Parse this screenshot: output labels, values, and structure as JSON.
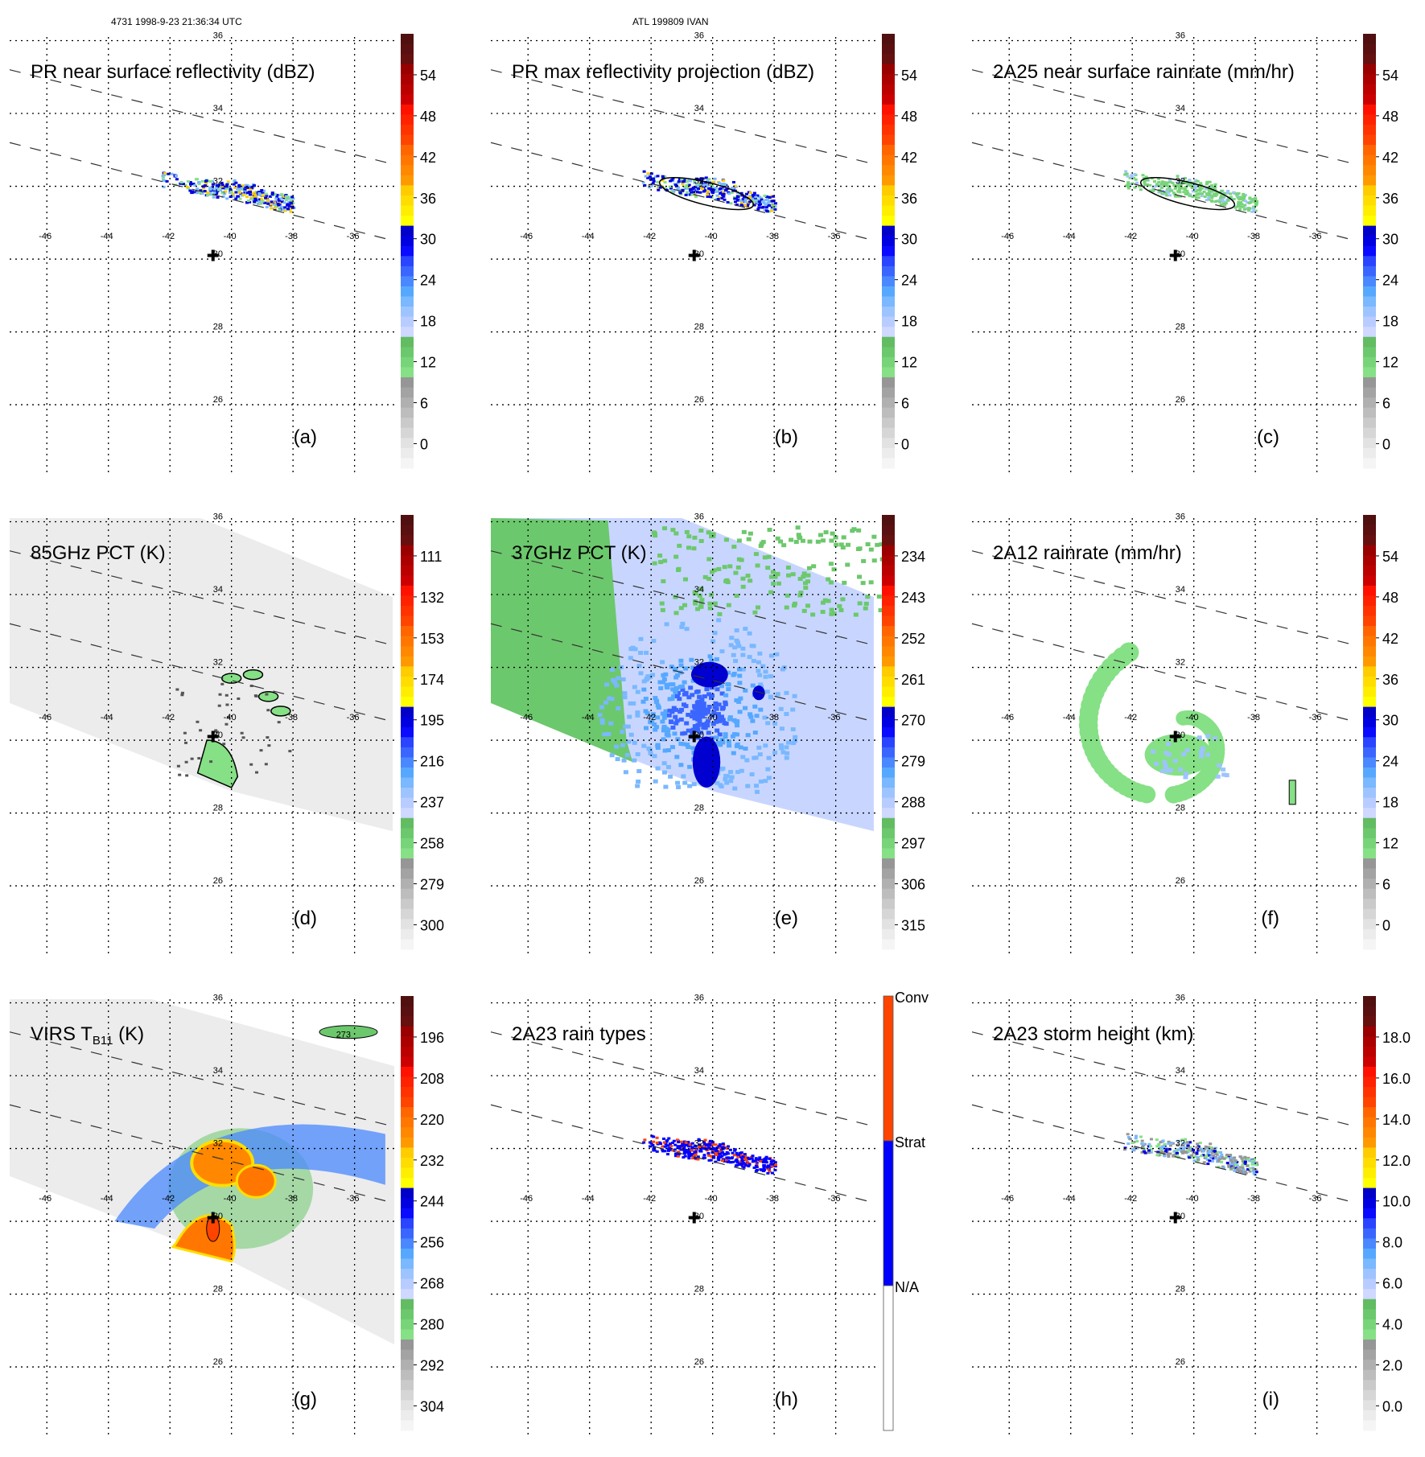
{
  "header": {
    "left": "4731 1998-9-23 21:36:34 UTC",
    "center": "ATL 199809 IVAN"
  },
  "chart_data": [
    {
      "id": "a",
      "type": "heatmap",
      "title": "PR near surface reflectivity (dBZ)",
      "letter": "(a)",
      "xticks": [
        "-46",
        "-44",
        "-42",
        "-40",
        "-38",
        "-36"
      ],
      "yticks": [
        "36",
        "34",
        "32",
        "30",
        "28",
        "26"
      ],
      "xlim": [
        -47,
        -34.5
      ],
      "ylim": [
        24.3,
        36
      ],
      "swath": "PR",
      "colorbar": {
        "ticks": [
          "54",
          "48",
          "42",
          "36",
          "30",
          "24",
          "18",
          "12",
          "6",
          "0"
        ],
        "range": [
          0,
          60
        ]
      },
      "storm_center": [
        -40.6,
        30.1
      ],
      "features": "narrow band of reflectivity 20-40 dBZ near 32N, -42 to -38W"
    },
    {
      "id": "b",
      "type": "heatmap",
      "title": "PR max reflectivity projection (dBZ)",
      "letter": "(b)",
      "xticks": [
        "-46",
        "-44",
        "-42",
        "-40",
        "-38",
        "-36"
      ],
      "yticks": [
        "36",
        "34",
        "32",
        "30",
        "28",
        "26"
      ],
      "xlim": [
        -47,
        -34.5
      ],
      "ylim": [
        24.3,
        36
      ],
      "swath": "PR",
      "colorbar": {
        "ticks": [
          "54",
          "48",
          "42",
          "36",
          "30",
          "24",
          "18",
          "12",
          "6",
          "0"
        ],
        "range": [
          0,
          60
        ]
      },
      "storm_center": [
        -40.6,
        30.1
      ],
      "features": "max reflectivity 20-40 dBZ along 32N band with 18 dBZ contour"
    },
    {
      "id": "c",
      "type": "heatmap",
      "title": "2A25 near surface rainrate (mm/hr)",
      "letter": "(c)",
      "xticks": [
        "-46",
        "-44",
        "-42",
        "-40",
        "-38",
        "-36"
      ],
      "yticks": [
        "36",
        "34",
        "32",
        "30",
        "28",
        "26"
      ],
      "xlim": [
        -47,
        -34.5
      ],
      "ylim": [
        24.3,
        36
      ],
      "swath": "PR",
      "colorbar": {
        "ticks": [
          "54",
          "48",
          "42",
          "36",
          "30",
          "24",
          "18",
          "12",
          "6",
          "0"
        ],
        "range": [
          0,
          60
        ]
      },
      "storm_center": [
        -40.6,
        30.1
      ],
      "features": "light rain 0-8 mm/hr along 32N band"
    },
    {
      "id": "d",
      "type": "heatmap",
      "title": "85GHz PCT (K)",
      "letter": "(d)",
      "xticks": [
        "-46",
        "-44",
        "-42",
        "-40",
        "-38",
        "-36"
      ],
      "yticks": [
        "36",
        "34",
        "32",
        "30",
        "28",
        "26"
      ],
      "xlim": [
        -47,
        -34.5
      ],
      "ylim": [
        24.3,
        36
      ],
      "swath": "TMI",
      "colorbar": {
        "ticks": [
          "111",
          "132",
          "153",
          "174",
          "195",
          "216",
          "237",
          "258",
          "279",
          "300"
        ],
        "range": [
          300,
          90
        ]
      },
      "storm_center": [
        -40.6,
        30.1
      ],
      "features": "mostly 270-300 K; depressed 220-250 K cells near 32N and south of center"
    },
    {
      "id": "e",
      "type": "heatmap",
      "title": "37GHz PCT (K)",
      "letter": "(e)",
      "xticks": [
        "-46",
        "-44",
        "-42",
        "-40",
        "-38",
        "-36"
      ],
      "yticks": [
        "36",
        "34",
        "32",
        "30",
        "28",
        "26"
      ],
      "xlim": [
        -47,
        -34.5
      ],
      "ylim": [
        24.3,
        36
      ],
      "swath": "TMI",
      "colorbar": {
        "ticks": [
          "234",
          "243",
          "252",
          "261",
          "270",
          "279",
          "288",
          "297",
          "306",
          "315"
        ],
        "range": [
          315,
          225
        ]
      },
      "storm_center": [
        -40.6,
        30.1
      ],
      "features": "west part 285-290 K (green); east part 270-285 K (blue); minimum ~265 K near 32N and south of center"
    },
    {
      "id": "f",
      "type": "heatmap",
      "title": "2A12 rainrate (mm/hr)",
      "letter": "(f)",
      "xticks": [
        "-46",
        "-44",
        "-42",
        "-40",
        "-38",
        "-36"
      ],
      "yticks": [
        "36",
        "34",
        "32",
        "30",
        "28",
        "26"
      ],
      "xlim": [
        -47,
        -34.5
      ],
      "ylim": [
        24.3,
        36
      ],
      "swath": "TMI",
      "colorbar": {
        "ticks": [
          "54",
          "48",
          "42",
          "36",
          "30",
          "24",
          "18",
          "12",
          "6",
          "0"
        ],
        "range": [
          0,
          60
        ]
      },
      "storm_center": [
        -40.6,
        30.1
      ],
      "features": "spiral rainband 0-12 mm/hr wrapping around center"
    },
    {
      "id": "g",
      "type": "heatmap",
      "title": "VIRS T",
      "title_sub": "B11",
      "title_suffix": " (K)",
      "letter": "(g)",
      "xticks": [
        "-46",
        "-44",
        "-42",
        "-40",
        "-38",
        "-36"
      ],
      "yticks": [
        "36",
        "34",
        "32",
        "30",
        "28",
        "26"
      ],
      "xlim": [
        -47,
        -34.5
      ],
      "ylim": [
        24.3,
        36
      ],
      "swath": "VIRS",
      "contour_label": "273",
      "colorbar": {
        "ticks": [
          "196",
          "208",
          "220",
          "232",
          "244",
          "256",
          "268",
          "280",
          "292",
          "304"
        ],
        "range": [
          304,
          184
        ]
      },
      "storm_center": [
        -40.6,
        30.1
      ],
      "features": "cold cloud tops 210-230 K near 31.5N -40W and at center; 240-260 K ring"
    },
    {
      "id": "h",
      "type": "heatmap",
      "title": "2A23 rain types",
      "letter": "(h)",
      "xticks": [
        "-46",
        "-44",
        "-42",
        "-40",
        "-38",
        "-36"
      ],
      "yticks": [
        "36",
        "34",
        "32",
        "30",
        "28",
        "26"
      ],
      "xlim": [
        -47,
        -34.5
      ],
      "ylim": [
        24.3,
        36
      ],
      "swath": "PR",
      "colorbar": {
        "categories": [
          "Conv",
          "Strat",
          "N/A"
        ],
        "colors": [
          "#ff4400",
          "#0000ff",
          "#ffffff"
        ]
      },
      "storm_center": [
        -40.6,
        30.1
      ],
      "features": "mostly stratiform with embedded convective pixels along 32N band"
    },
    {
      "id": "i",
      "type": "heatmap",
      "title": "2A23 storm height (km)",
      "letter": "(i)",
      "xticks": [
        "-46",
        "-44",
        "-42",
        "-40",
        "-38",
        "-36"
      ],
      "yticks": [
        "36",
        "34",
        "32",
        "30",
        "28",
        "26"
      ],
      "xlim": [
        -47,
        -34.5
      ],
      "ylim": [
        24.3,
        36
      ],
      "swath": "PR",
      "colorbar": {
        "ticks": [
          "18.0",
          "16.0",
          "14.0",
          "12.0",
          "10.0",
          "8.0",
          "6.0",
          "4.0",
          "2.0",
          "0.0"
        ],
        "range": [
          0,
          20
        ]
      },
      "storm_center": [
        -40.6,
        30.1
      ],
      "features": "storm heights 4-10 km along 32N band"
    }
  ],
  "colors": {
    "scale": [
      "#f5f5f5",
      "#ececec",
      "#e2e2e2",
      "#d6d6d6",
      "#cacaca",
      "#bdbdbd",
      "#b0b0b0",
      "#a3a3a3",
      "#969696",
      "#86e086",
      "#78d478",
      "#6cc86c",
      "#62bc62",
      "#cfd8ff",
      "#b8ccff",
      "#9ec4ff",
      "#7ab8ff",
      "#56a8ff",
      "#4a88ff",
      "#3a66ff",
      "#2a44ff",
      "#0a0aff",
      "#0000e0",
      "#0000c8",
      "#ffff00",
      "#ffee00",
      "#ffdd00",
      "#ffcc00",
      "#ff9900",
      "#ff8800",
      "#ff7700",
      "#ff6600",
      "#ff4400",
      "#ff3300",
      "#ff2200",
      "#ff1100",
      "#cc0000",
      "#bb0000",
      "#aa0000",
      "#990000",
      "#661010",
      "#5a1010",
      "#501010"
    ],
    "grid": "#000000",
    "swath_lines": "#333333"
  }
}
